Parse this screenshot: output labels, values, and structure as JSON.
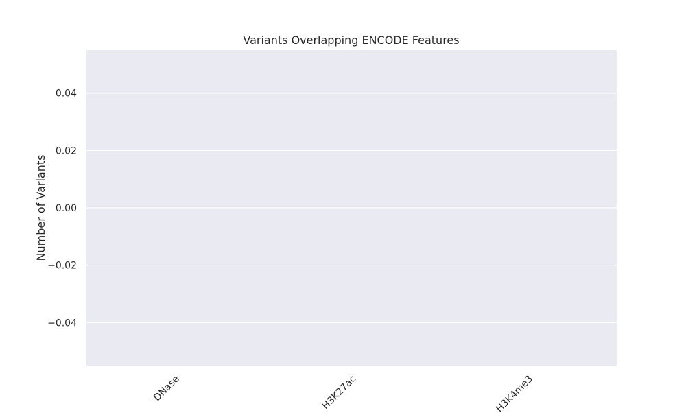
{
  "chart_data": {
    "type": "bar",
    "title": "Variants Overlapping ENCODE Features",
    "xlabel": "",
    "ylabel": "Number of Variants",
    "categories": [
      "DNase",
      "H3K27ac",
      "H3K4me3"
    ],
    "values": [
      0,
      0,
      0
    ],
    "ylim": [
      -0.055,
      0.055
    ],
    "yticks": [
      -0.04,
      -0.02,
      0.0,
      0.02,
      0.04
    ],
    "ytick_labels": [
      "−0.04",
      "−0.02",
      "0.00",
      "0.02",
      "0.04"
    ],
    "grid": true,
    "colors": {
      "background": "#eaeaf2",
      "gridline": "#ffffff",
      "bar": "#4c72b0",
      "text": "#262626"
    }
  }
}
